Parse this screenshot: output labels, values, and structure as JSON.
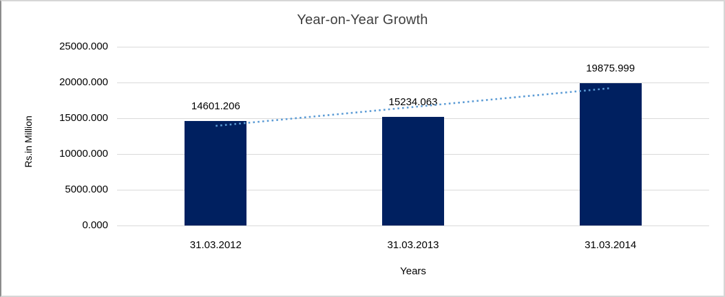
{
  "chart_data": {
    "type": "bar",
    "title": "Year-on-Year Growth",
    "categories": [
      "31.03.2012",
      "31.03.2013",
      "31.03.2014"
    ],
    "values": [
      14601.206,
      15234.063,
      19875.999
    ],
    "data_labels": [
      "14601.206",
      "15234.063",
      "19875.999"
    ],
    "xlabel": "Years",
    "ylabel": "Rs.in Million",
    "ylim": [
      0,
      25000
    ],
    "ytick_step": 5000,
    "ytick_labels": [
      "0.000",
      "5000.000",
      "10000.000",
      "15000.000",
      "20000.000",
      "25000.000"
    ],
    "grid": "horizontal-only",
    "legend": "none",
    "colors": {
      "bar": "#002060",
      "trendline": "#5b9bd5",
      "gridline": "#d9d9d9",
      "title_text": "#3f3f3f",
      "axis_text": "#000000",
      "frame_border": "#d6d6d6"
    },
    "trendline": {
      "type": "linear",
      "style": "dotted",
      "color": "#5b9bd5"
    }
  }
}
